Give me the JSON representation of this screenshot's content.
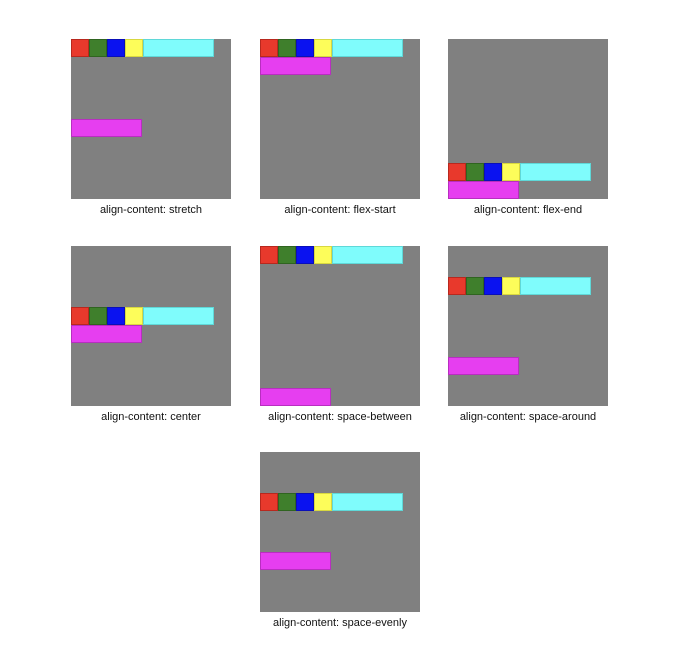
{
  "colors": {
    "background": "#ffffff",
    "container": "#808080",
    "red": "#e8392c",
    "green": "#3f7f2c",
    "blue": "#0a12f0",
    "yellow": "#fdfd5a",
    "cyan": "#7ffcfc",
    "magenta": "#e63ef0"
  },
  "demos": [
    {
      "id": "stretch",
      "caption": "align-content: stretch"
    },
    {
      "id": "flex-start",
      "caption": "align-content: flex-start"
    },
    {
      "id": "flex-end",
      "caption": "align-content: flex-end"
    },
    {
      "id": "center",
      "caption": "align-content: center"
    },
    {
      "id": "space-between",
      "caption": "align-content: space-between"
    },
    {
      "id": "space-around",
      "caption": "align-content: space-around"
    },
    {
      "id": "space-evenly",
      "caption": "align-content: space-evenly"
    }
  ]
}
